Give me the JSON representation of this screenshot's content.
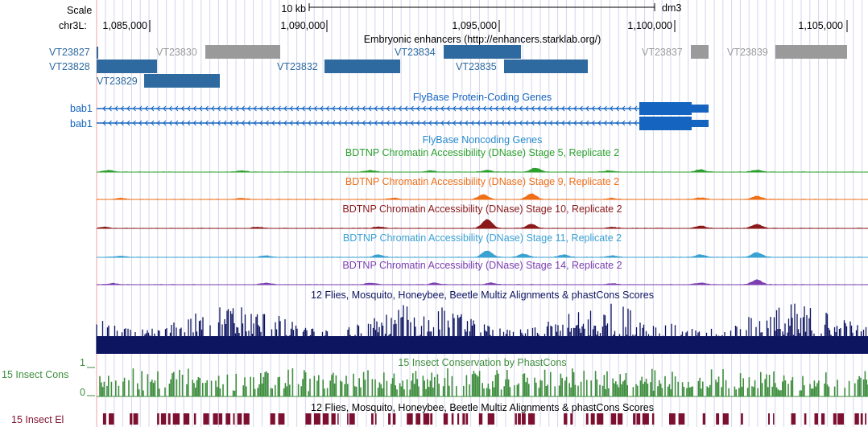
{
  "header": {
    "scale_label": "Scale",
    "scale_value": "10 kb",
    "assembly": "dm3",
    "chrom_label": "chr3L:",
    "positions": [
      "1,085,000",
      "1,090,000",
      "1,095,000",
      "1,100,000",
      "1,105,000"
    ]
  },
  "tracks": {
    "enhancers": {
      "title": "Embryonic enhancers (http://enhancers.starklab.org/)",
      "items": [
        "VT23827",
        "VT23828",
        "VT23829",
        "VT23830",
        "VT23832",
        "VT23834",
        "VT23835",
        "VT23837",
        "VT23839"
      ]
    },
    "fb_coding": {
      "title": "FlyBase Protein-Coding Genes",
      "genes": [
        "bab1",
        "bab1"
      ]
    },
    "fb_noncoding": {
      "title": "FlyBase Noncoding Genes"
    },
    "dnase": [
      {
        "title": "BDTNP Chromatin Accessibility (DNase) Stage 5, Replicate 2",
        "color": "#2ca02c"
      },
      {
        "title": "BDTNP Chromatin Accessibility (DNase) Stage 9, Replicate 2",
        "color": "#ef6f16"
      },
      {
        "title": "BDTNP Chromatin Accessibility (DNase) Stage 10, Replicate 2",
        "color": "#8b1a1a"
      },
      {
        "title": "BDTNP Chromatin Accessibility (DNase) Stage 11, Replicate 2",
        "color": "#3aa2d2"
      },
      {
        "title": "BDTNP Chromatin Accessibility (DNase) Stage 14, Replicate 2",
        "color": "#7b3fb0"
      }
    ],
    "multiz": {
      "title": "12 Flies, Mosquito, Honeybee, Beetle Multiz Alignments & phastCons Scores",
      "color": "#0d1460"
    },
    "phastcons": {
      "title": "15 Insect Conservation by PhastCons",
      "side_label": "15 Insect Cons",
      "ymax": "1",
      "ymin": "0",
      "color": "#3e8e3e"
    },
    "elements": {
      "title": "12 Flies, Mosquito, Honeybee, Beetle Multiz Alignments & phastCons Scores",
      "side_label": "15 Insect El",
      "color": "#7d1030"
    }
  },
  "colors": {
    "enhancer_active": "#2e6aa0",
    "enhancer_inactive": "#9a9a9a",
    "gene": "#1565c0",
    "grid": "#d5d5ee",
    "left_rule": "#f2a0a0"
  }
}
